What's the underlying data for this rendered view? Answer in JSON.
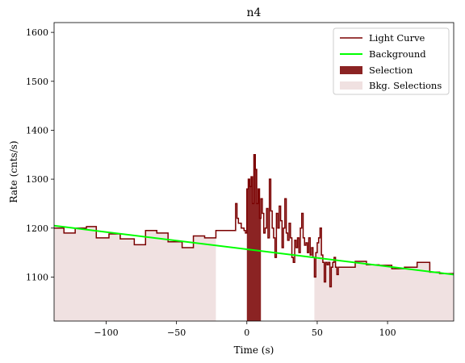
{
  "chart_data": {
    "type": "line",
    "title": "n4",
    "xlabel": "Time (s)",
    "ylabel": "Rate (cnts/s)",
    "xlim": [
      -137,
      147
    ],
    "ylim": [
      1010,
      1620
    ],
    "xticks": [
      -100,
      -50,
      0,
      50,
      100
    ],
    "xtick_labels": [
      "−100",
      "−50",
      "0",
      "50",
      "100"
    ],
    "yticks": [
      1100,
      1200,
      1300,
      1400,
      1500,
      1600
    ],
    "ytick_labels": [
      "1100",
      "1200",
      "1300",
      "1400",
      "1500",
      "1600"
    ],
    "grid": false,
    "legend_position": "top-right",
    "legend": [
      "Light Curve",
      "Background",
      "Selection",
      "Bkg. Selections"
    ],
    "colors": {
      "light_curve": "#7a0000",
      "background": "#00ff00",
      "selection": "#8b2323",
      "bkg_selection": "#f0e1e1"
    },
    "light_curve": {
      "name": "Light Curve",
      "steps": [
        [
          -137,
          1200
        ],
        [
          -130,
          1190
        ],
        [
          -122,
          1200
        ],
        [
          -114,
          1203
        ],
        [
          -107,
          1180
        ],
        [
          -98,
          1188
        ],
        [
          -90,
          1178
        ],
        [
          -80,
          1166
        ],
        [
          -72,
          1195
        ],
        [
          -64,
          1190
        ],
        [
          -56,
          1172
        ],
        [
          -46,
          1160
        ],
        [
          -38,
          1184
        ],
        [
          -30,
          1180
        ],
        [
          -22,
          1195
        ],
        [
          -14,
          1195
        ],
        [
          -8,
          1250
        ],
        [
          -7,
          1220
        ],
        [
          -6,
          1210
        ],
        [
          -4,
          1200
        ],
        [
          -2,
          1195
        ],
        [
          -1,
          1190
        ],
        [
          0,
          1280
        ],
        [
          1,
          1300
        ],
        [
          2,
          1285
        ],
        [
          3,
          1305
        ],
        [
          4,
          1250
        ],
        [
          5,
          1350
        ],
        [
          6,
          1320
        ],
        [
          7,
          1250
        ],
        [
          8,
          1280
        ],
        [
          9,
          1220
        ],
        [
          10,
          1260
        ],
        [
          11,
          1230
        ],
        [
          12,
          1190
        ],
        [
          13,
          1200
        ],
        [
          14,
          1240
        ],
        [
          15,
          1180
        ],
        [
          16,
          1300
        ],
        [
          17,
          1235
        ],
        [
          18,
          1200
        ],
        [
          19,
          1180
        ],
        [
          20,
          1140
        ],
        [
          21,
          1230
        ],
        [
          22,
          1200
        ],
        [
          23,
          1245
        ],
        [
          24,
          1215
        ],
        [
          25,
          1160
        ],
        [
          26,
          1200
        ],
        [
          27,
          1260
        ],
        [
          28,
          1190
        ],
        [
          29,
          1175
        ],
        [
          30,
          1210
        ],
        [
          31,
          1180
        ],
        [
          32,
          1140
        ],
        [
          33,
          1130
        ],
        [
          34,
          1175
        ],
        [
          35,
          1160
        ],
        [
          36,
          1180
        ],
        [
          37,
          1150
        ],
        [
          38,
          1200
        ],
        [
          39,
          1230
        ],
        [
          40,
          1180
        ],
        [
          41,
          1165
        ],
        [
          42,
          1170
        ],
        [
          43,
          1150
        ],
        [
          44,
          1180
        ],
        [
          45,
          1145
        ],
        [
          46,
          1160
        ],
        [
          47,
          1140
        ],
        [
          48,
          1100
        ],
        [
          49,
          1150
        ],
        [
          50,
          1170
        ],
        [
          51,
          1180
        ],
        [
          52,
          1200
        ],
        [
          53,
          1145
        ],
        [
          54,
          1130
        ],
        [
          55,
          1090
        ],
        [
          56,
          1130
        ],
        [
          57,
          1125
        ],
        [
          58,
          1130
        ],
        [
          59,
          1080
        ],
        [
          60,
          1120
        ],
        [
          61,
          1130
        ],
        [
          62,
          1140
        ],
        [
          63,
          1120
        ],
        [
          64,
          1105
        ],
        [
          65,
          1120
        ],
        [
          68,
          1120
        ],
        [
          77,
          1132
        ],
        [
          85,
          1125
        ],
        [
          94,
          1124
        ],
        [
          103,
          1117
        ],
        [
          112,
          1120
        ],
        [
          121,
          1130
        ],
        [
          130,
          1110
        ],
        [
          137,
          1107
        ],
        [
          147,
          1107
        ]
      ]
    },
    "background_fit": {
      "name": "Background",
      "start": [
        -137,
        1205
      ],
      "end": [
        147,
        1105
      ]
    },
    "selection": {
      "name": "Selection",
      "range": [
        0,
        10
      ]
    },
    "bkg_selections": {
      "name": "Bkg. Selections",
      "ranges": [
        [
          -137,
          -22
        ],
        [
          48,
          147
        ]
      ]
    }
  }
}
